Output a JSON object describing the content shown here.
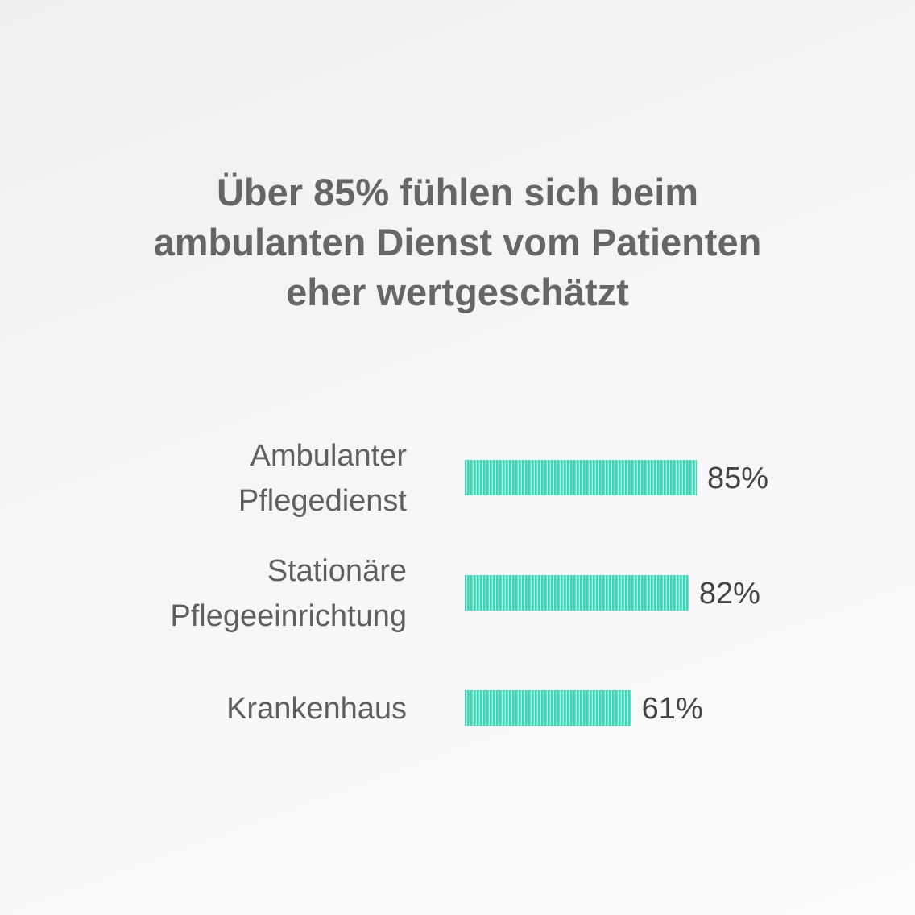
{
  "title_lines": [
    "Über 85% fühlen sich beim",
    "ambulanten Dienst vom Patienten",
    "eher wertgeschätzt"
  ],
  "chart_data": {
    "type": "bar",
    "orientation": "horizontal",
    "title": "Über 85% fühlen sich beim ambulanten Dienst vom Patienten eher wertgeschätzt",
    "categories": [
      [
        "Ambulanter",
        "Pflegedienst"
      ],
      [
        "Stationäre",
        "Pflegeeinrichtung"
      ],
      [
        "Krankenhaus"
      ]
    ],
    "values": [
      85,
      82,
      61
    ],
    "value_labels": [
      "85%",
      "82%",
      "61%"
    ],
    "unit": "%",
    "bar_color": "#3cd6b8",
    "grid": false,
    "legend": "none"
  }
}
